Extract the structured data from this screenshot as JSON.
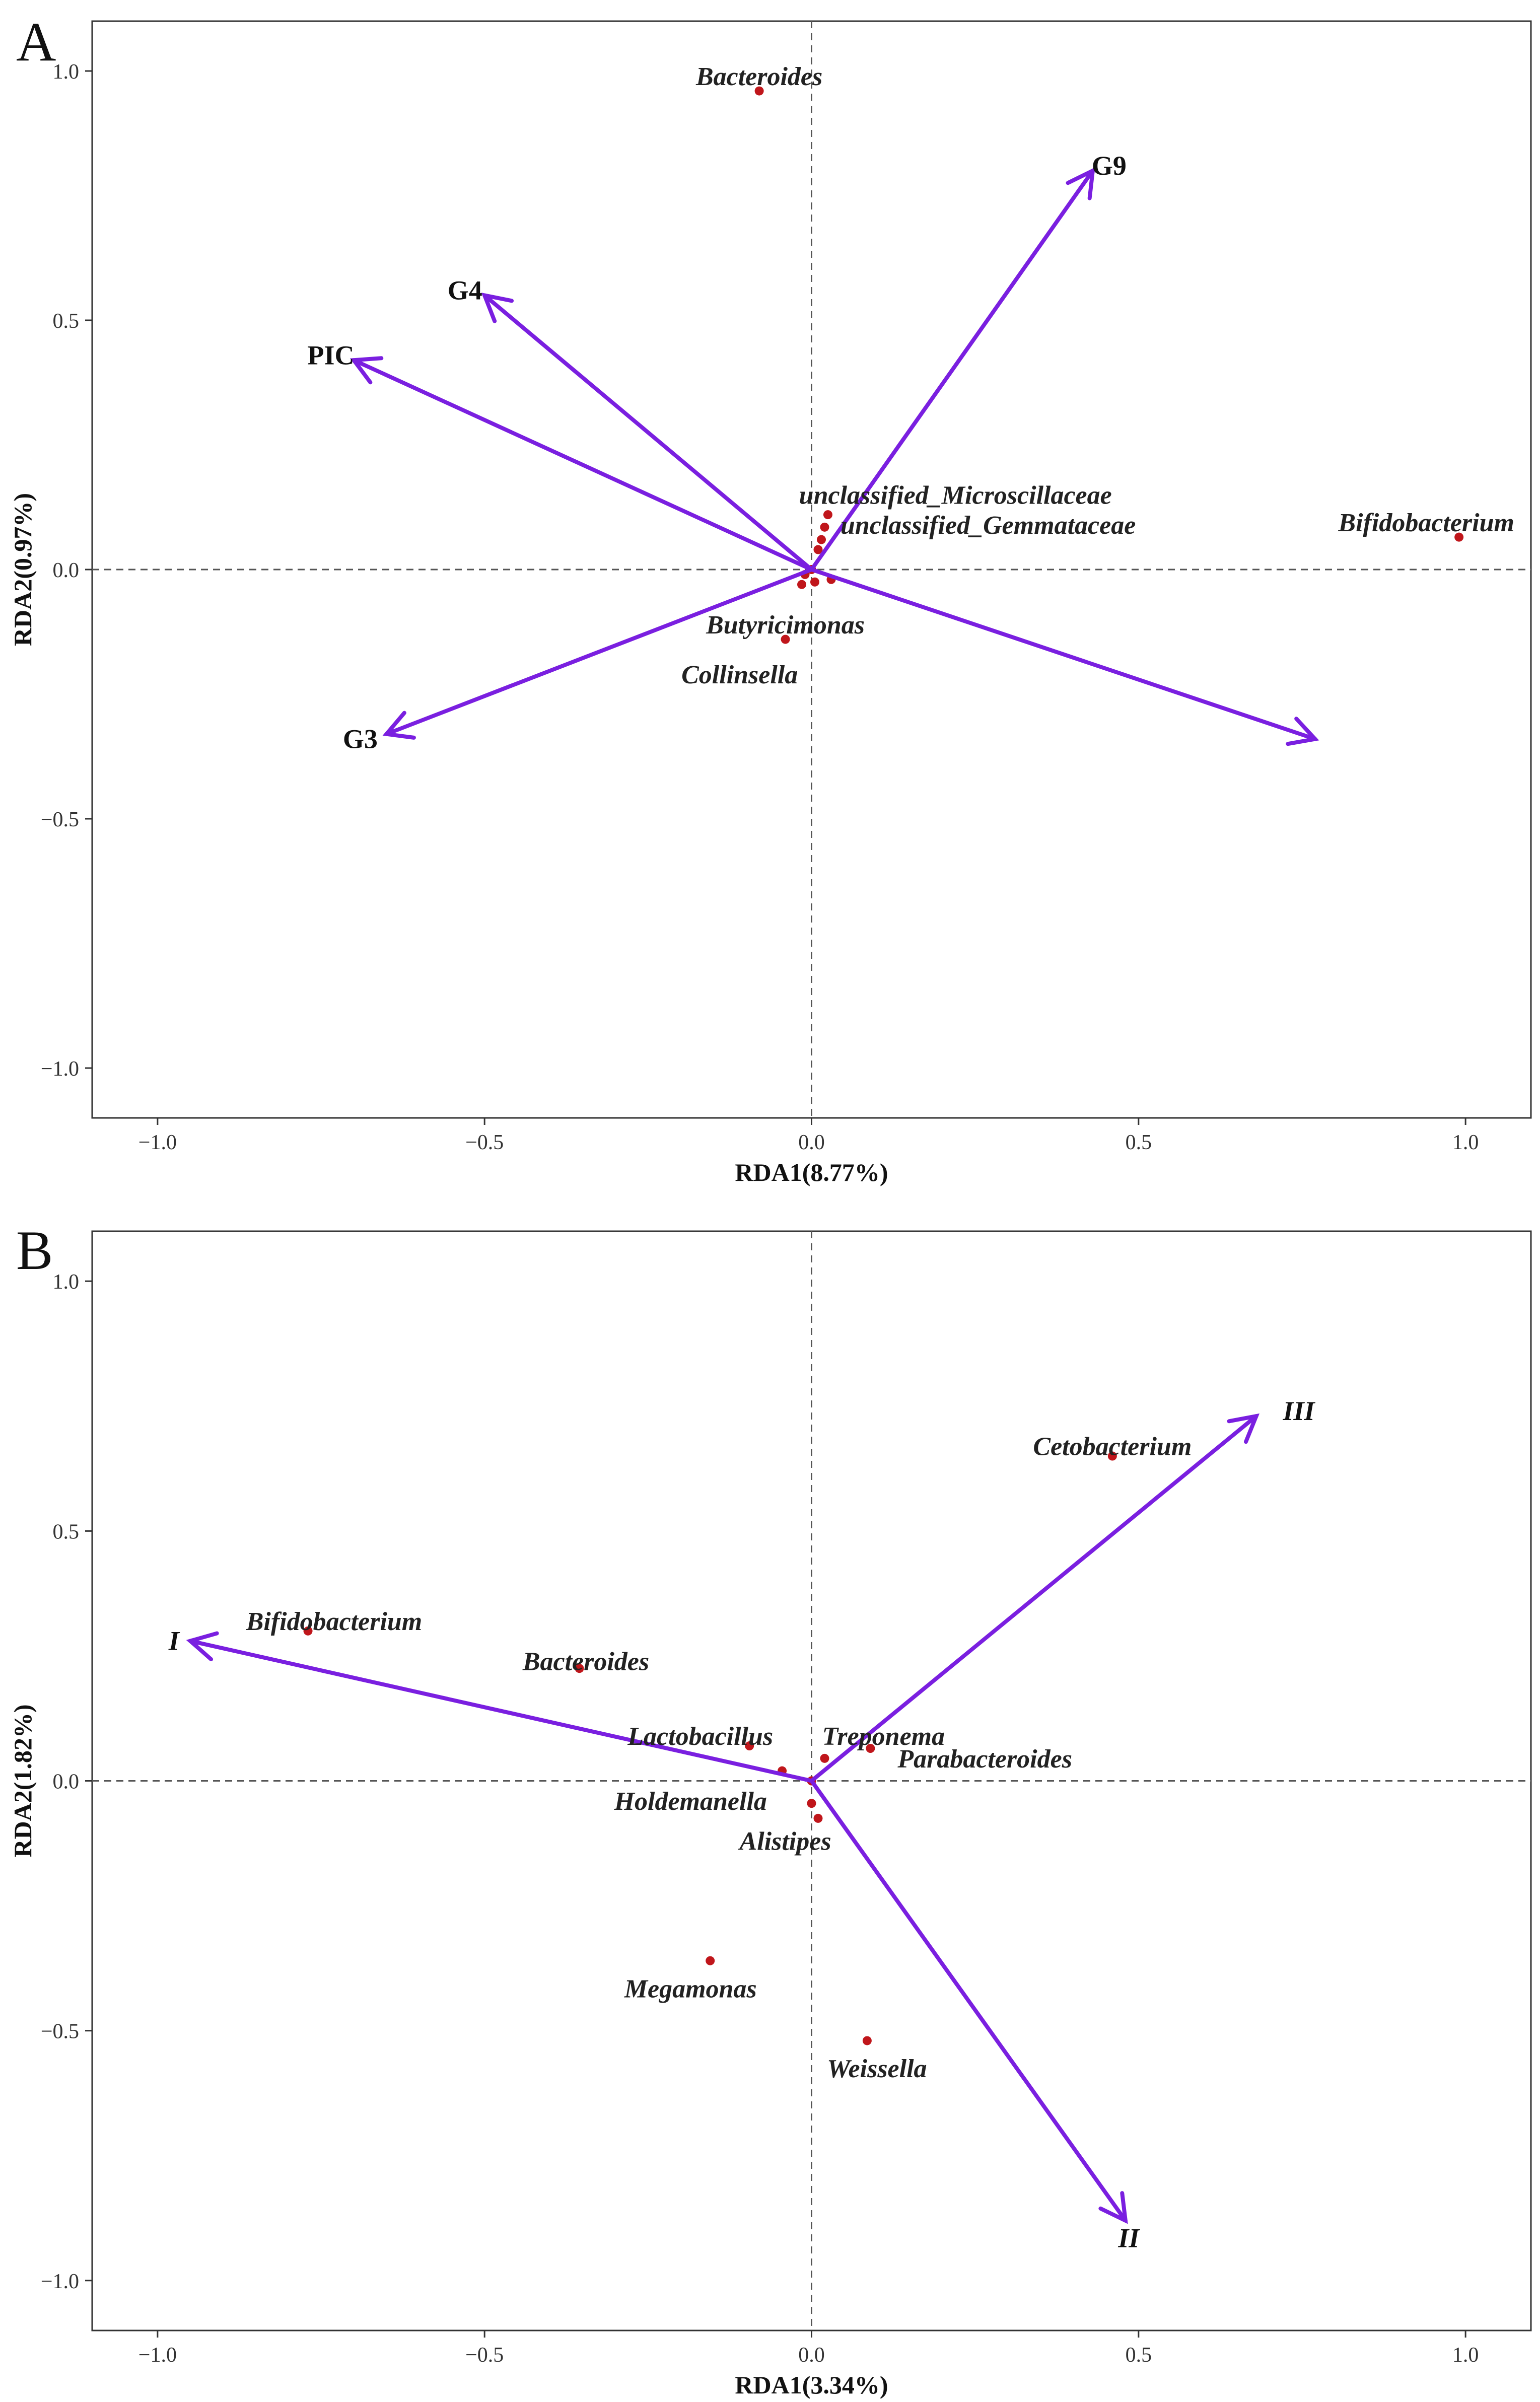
{
  "colors": {
    "arrow": "#7a1fe0",
    "point": "#c0161b",
    "axis": "#333333",
    "zero_line": "#555555"
  },
  "chart_data": [
    {
      "type": "scatter",
      "panel": "A",
      "xlabel": "RDA1(8.77%)",
      "ylabel": "RDA2(0.97%)",
      "xlim": [
        -1.1,
        1.1
      ],
      "ylim": [
        -1.1,
        1.1
      ],
      "xticks": [
        -1.0,
        -0.5,
        0.0,
        0.5,
        1.0
      ],
      "yticks": [
        -1.0,
        -0.5,
        0.0,
        0.5,
        1.0
      ],
      "tick_labels_x": [
        "−1.0",
        "−0.5",
        "0.0",
        "0.5",
        "1.0"
      ],
      "tick_labels_y": [
        "−1.0",
        "−0.5",
        "0.0",
        "0.5",
        "1.0"
      ],
      "zero_lines": true,
      "arrows": [
        {
          "name": "G9",
          "x": 0.43,
          "y": 0.8,
          "label_italic": false
        },
        {
          "name": "G4",
          "x": -0.5,
          "y": 0.55,
          "label_italic": false
        },
        {
          "name": "PIC",
          "x": -0.7,
          "y": 0.42,
          "label_italic": false
        },
        {
          "name": "G3",
          "x": -0.65,
          "y": -0.33,
          "label_italic": false
        },
        {
          "name": "",
          "x": 0.77,
          "y": -0.34,
          "label_italic": false
        }
      ],
      "points": [
        {
          "name": "Bacteroides",
          "x": -0.08,
          "y": 0.96
        },
        {
          "name": "Bifidobacterium",
          "x": 0.99,
          "y": 0.065
        },
        {
          "name": "unclassified_Microscillaceae",
          "x": 0.025,
          "y": 0.11
        },
        {
          "name": "unclassified_Gemmataceae",
          "x": 0.02,
          "y": 0.085
        },
        {
          "name": "Butyricimonas",
          "x": 0.03,
          "y": -0.02
        },
        {
          "name": "Collinsella",
          "x": -0.04,
          "y": -0.14
        },
        {
          "name": "",
          "x": 0.015,
          "y": 0.06
        },
        {
          "name": "",
          "x": 0.01,
          "y": 0.04
        },
        {
          "name": "",
          "x": -0.01,
          "y": -0.01
        },
        {
          "name": "",
          "x": 0.005,
          "y": -0.025
        },
        {
          "name": "",
          "x": -0.015,
          "y": -0.03
        },
        {
          "name": "",
          "x": 0.0,
          "y": 0.0
        }
      ],
      "point_labels": [
        {
          "text": "Bacteroides",
          "x": -0.08,
          "y": 0.99
        },
        {
          "text": "unclassified_Microscillaceae",
          "x": 0.22,
          "y": 0.15
        },
        {
          "text": "unclassified_Gemmataceae",
          "x": 0.27,
          "y": 0.09
        },
        {
          "text": "Bifidobacterium",
          "x": 0.94,
          "y": 0.095
        },
        {
          "text": "Butyricimonas",
          "x": -0.04,
          "y": -0.11
        },
        {
          "text": "Collinsella",
          "x": -0.11,
          "y": -0.21
        }
      ],
      "arrow_labels": [
        {
          "text": "G9",
          "x": 0.455,
          "y": 0.81
        },
        {
          "text": "G4",
          "x": -0.53,
          "y": 0.56
        },
        {
          "text": "PIC",
          "x": -0.735,
          "y": 0.43
        },
        {
          "text": "G3",
          "x": -0.69,
          "y": -0.34
        }
      ]
    },
    {
      "type": "scatter",
      "panel": "B",
      "xlabel": "RDA1(3.34%)",
      "ylabel": "RDA2(1.82%)",
      "xlim": [
        -1.1,
        1.1
      ],
      "ylim": [
        -1.1,
        1.1
      ],
      "xticks": [
        -1.0,
        -0.5,
        0.0,
        0.5,
        1.0
      ],
      "yticks": [
        -1.0,
        -0.5,
        0.0,
        0.5,
        1.0
      ],
      "tick_labels_x": [
        "−1.0",
        "−0.5",
        "0.0",
        "0.5",
        "1.0"
      ],
      "tick_labels_y": [
        "−1.0",
        "−0.5",
        "0.0",
        "0.5",
        "1.0"
      ],
      "zero_lines": true,
      "arrows": [
        {
          "name": "III",
          "x": 0.68,
          "y": 0.73,
          "label_italic": true
        },
        {
          "name": "I",
          "x": -0.95,
          "y": 0.28,
          "label_italic": true
        },
        {
          "name": "II",
          "x": 0.48,
          "y": -0.88,
          "label_italic": true
        }
      ],
      "points": [
        {
          "name": "Cetobacterium",
          "x": 0.46,
          "y": 0.65
        },
        {
          "name": "Bifidobacterium",
          "x": -0.77,
          "y": 0.3
        },
        {
          "name": "Bacteroides",
          "x": -0.355,
          "y": 0.225
        },
        {
          "name": "Lactobacillus",
          "x": -0.095,
          "y": 0.07
        },
        {
          "name": "Treponema",
          "x": 0.02,
          "y": 0.045
        },
        {
          "name": "Parabacteroides",
          "x": 0.09,
          "y": 0.065
        },
        {
          "name": "Holdemanella",
          "x": 0.0,
          "y": -0.045
        },
        {
          "name": "Alistipes",
          "x": 0.01,
          "y": -0.075
        },
        {
          "name": "Megamonas",
          "x": -0.155,
          "y": -0.36
        },
        {
          "name": "Weissella",
          "x": 0.085,
          "y": -0.52
        },
        {
          "name": "",
          "x": -0.045,
          "y": 0.02
        },
        {
          "name": "",
          "x": 0.0,
          "y": 0.0
        }
      ],
      "point_labels": [
        {
          "text": "Cetobacterium",
          "x": 0.46,
          "y": 0.67
        },
        {
          "text": "Bifidobacterium",
          "x": -0.73,
          "y": 0.32
        },
        {
          "text": "Bacteroides",
          "x": -0.345,
          "y": 0.24
        },
        {
          "text": "Lactobacillus",
          "x": -0.17,
          "y": 0.09
        },
        {
          "text": "Treponema",
          "x": 0.11,
          "y": 0.09
        },
        {
          "text": "Parabacteroides",
          "x": 0.265,
          "y": 0.045
        },
        {
          "text": "Holdemanella",
          "x": -0.185,
          "y": -0.04
        },
        {
          "text": "Alistipes",
          "x": -0.04,
          "y": -0.12
        },
        {
          "text": "Megamonas",
          "x": -0.185,
          "y": -0.415
        },
        {
          "text": "Weissella",
          "x": 0.1,
          "y": -0.575
        }
      ],
      "arrow_labels": [
        {
          "text": "III",
          "x": 0.745,
          "y": 0.74
        },
        {
          "text": "I",
          "x": -0.975,
          "y": 0.28
        },
        {
          "text": "II",
          "x": 0.485,
          "y": -0.915
        }
      ]
    }
  ]
}
